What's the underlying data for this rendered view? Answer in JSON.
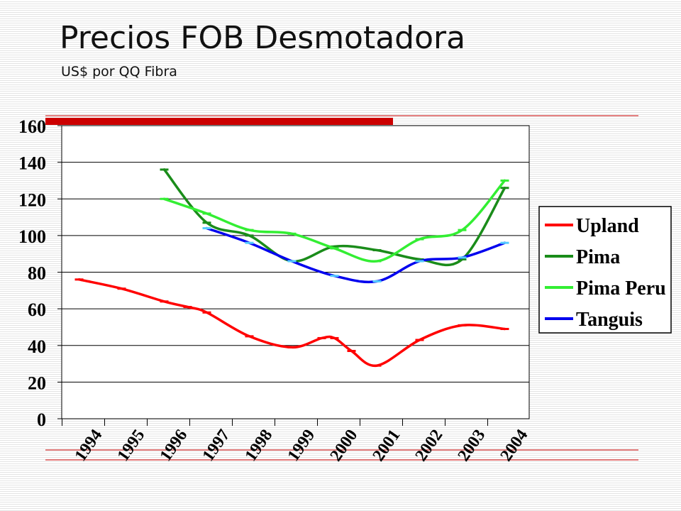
{
  "title": "Precios FOB Desmotadora",
  "subtitle": "US$ por QQ Fibra",
  "chart_data": {
    "type": "line",
    "title": "",
    "xlabel": "",
    "ylabel": "",
    "categories": [
      "1994",
      "1995",
      "1996",
      "1997",
      "1998",
      "1999",
      "2000",
      "2001",
      "2002",
      "2003",
      "2004"
    ],
    "ylim": [
      0,
      160
    ],
    "yticks": [
      0,
      20,
      40,
      60,
      80,
      100,
      120,
      140,
      160
    ],
    "grid": true,
    "legend_position": "right",
    "series": [
      {
        "name": "Upland",
        "color": "#ff0000",
        "points": [
          [
            0.4,
            76
          ],
          [
            1.4,
            71
          ],
          [
            2.4,
            64
          ],
          [
            2.95,
            61
          ],
          [
            3.4,
            58
          ],
          [
            4.4,
            45
          ],
          [
            5.4,
            39
          ],
          [
            6.1,
            44
          ],
          [
            6.4,
            44
          ],
          [
            6.8,
            37
          ],
          [
            7.4,
            29
          ],
          [
            8.4,
            43
          ],
          [
            9.4,
            51
          ],
          [
            10.4,
            49
          ]
        ]
      },
      {
        "name": "Pima",
        "color": "#1a8c1a",
        "points": [
          [
            2.4,
            136
          ],
          [
            3.4,
            107
          ],
          [
            4.4,
            100
          ],
          [
            5.4,
            86
          ],
          [
            6.4,
            94
          ],
          [
            7.4,
            92
          ],
          [
            8.4,
            87
          ],
          [
            9.4,
            87
          ],
          [
            10.4,
            126
          ]
        ]
      },
      {
        "name": "Pima Peru",
        "color": "#33ee33",
        "points": [
          [
            2.4,
            120
          ],
          [
            3.4,
            112
          ],
          [
            4.4,
            103
          ],
          [
            5.4,
            101
          ],
          [
            6.4,
            93
          ],
          [
            7.4,
            86
          ],
          [
            8.4,
            98
          ],
          [
            9.4,
            103
          ],
          [
            10.4,
            130
          ]
        ]
      },
      {
        "name": "Tanguis",
        "color": "#0000ee",
        "points": [
          [
            3.4,
            104
          ],
          [
            4.4,
            96
          ],
          [
            5.4,
            86
          ],
          [
            6.4,
            78
          ],
          [
            7.4,
            75
          ],
          [
            8.4,
            86
          ],
          [
            9.4,
            88
          ],
          [
            10.4,
            96
          ]
        ]
      }
    ]
  },
  "theme": {
    "accent_bar": "#cc0000",
    "rule_line": "#cc0000",
    "grid_line": "#000000",
    "tanguis_marker": "#55ccff"
  }
}
